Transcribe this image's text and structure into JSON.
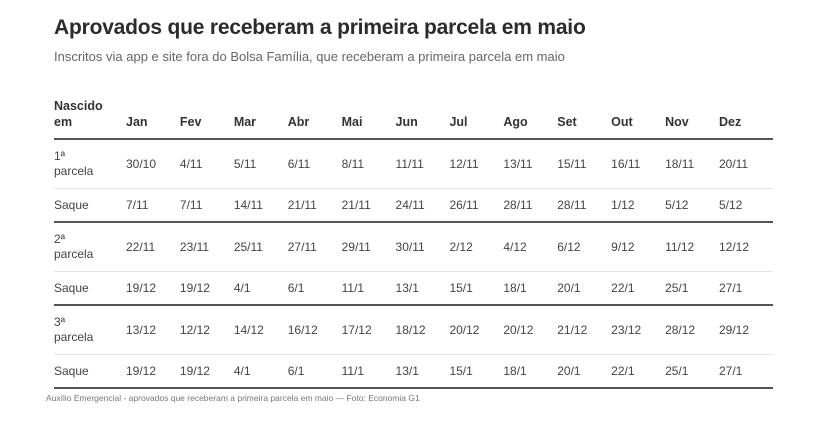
{
  "title": "Aprovados que receberam a primeira parcela em maio",
  "subtitle": "Inscritos via app e site fora do Bolsa Família, que receberam a primeira parcela em maio",
  "table": {
    "header_first_line1": "Nascido",
    "header_first_line2": "em",
    "months": [
      "Jan",
      "Fev",
      "Mar",
      "Abr",
      "Mai",
      "Jun",
      "Jul",
      "Ago",
      "Set",
      "Out",
      "Nov",
      "Dez"
    ],
    "rows": [
      {
        "kind": "parcela",
        "label1": "1ª",
        "label2": "parcela",
        "values": [
          "30/10",
          "4/11",
          "5/11",
          "6/11",
          "8/11",
          "11/11",
          "12/11",
          "13/11",
          "15/11",
          "16/11",
          "18/11",
          "20/11"
        ]
      },
      {
        "kind": "saque",
        "label1": "Saque",
        "label2": "",
        "values": [
          "7/11",
          "7/11",
          "14/11",
          "21/11",
          "21/11",
          "24/11",
          "26/11",
          "28/11",
          "28/11",
          "1/12",
          "5/12",
          "5/12"
        ]
      },
      {
        "kind": "parcela",
        "label1": "2ª",
        "label2": "parcela",
        "values": [
          "22/11",
          "23/11",
          "25/11",
          "27/11",
          "29/11",
          "30/11",
          "2/12",
          "4/12",
          "6/12",
          "9/12",
          "11/12",
          "12/12"
        ]
      },
      {
        "kind": "saque",
        "label1": "Saque",
        "label2": "",
        "values": [
          "19/12",
          "19/12",
          "4/1",
          "6/1",
          "11/1",
          "13/1",
          "15/1",
          "18/1",
          "20/1",
          "22/1",
          "25/1",
          "27/1"
        ]
      },
      {
        "kind": "parcela",
        "label1": "3ª",
        "label2": "parcela",
        "values": [
          "13/12",
          "12/12",
          "14/12",
          "16/12",
          "17/12",
          "18/12",
          "20/12",
          "20/12",
          "21/12",
          "23/12",
          "28/12",
          "29/12"
        ]
      },
      {
        "kind": "saque",
        "label1": "Saque",
        "label2": "",
        "values": [
          "19/12",
          "19/12",
          "4/1",
          "6/1",
          "11/1",
          "13/1",
          "15/1",
          "18/1",
          "20/1",
          "22/1",
          "25/1",
          "27/1"
        ]
      }
    ]
  },
  "caption": "Auxílio Emergencial - aprovados que receberam a primeira parcela em maio — Foto: Economia G1",
  "colors": {
    "text": "#333333",
    "rule": "#555555",
    "subtitle": "#666666"
  }
}
